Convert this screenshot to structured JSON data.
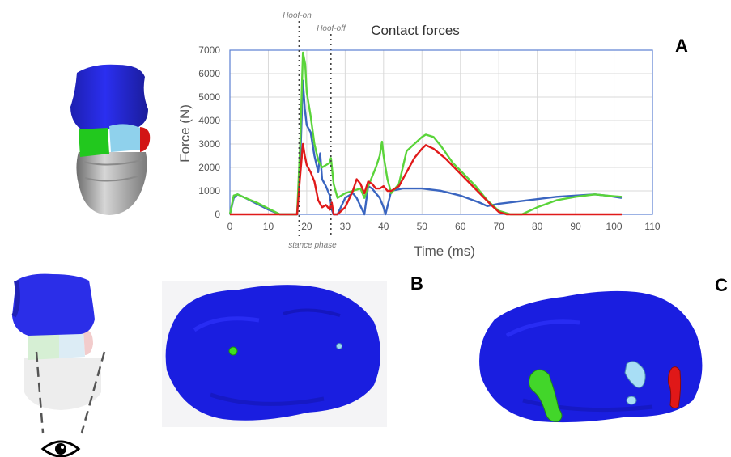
{
  "panels": {
    "a": "A",
    "b": "B",
    "c": "C"
  },
  "chart_data": {
    "type": "line",
    "title": "Contact forces",
    "xlabel": "Time (ms)",
    "ylabel": "Force (N)",
    "xlim": [
      0,
      110
    ],
    "ylim": [
      0,
      7000
    ],
    "xticks": [
      0,
      10,
      20,
      30,
      40,
      50,
      60,
      70,
      80,
      90,
      100,
      110
    ],
    "yticks": [
      0,
      1000,
      2000,
      3000,
      4000,
      5000,
      6000,
      7000
    ],
    "grid": true,
    "annotations": {
      "hoof_on": "Hoof-on",
      "hoof_off": "Hoof-off",
      "stance": "stance phase"
    },
    "markers": {
      "hoof_on_x": 18,
      "hoof_off_x": 26.3
    },
    "series": [
      {
        "color": "#3a65c0",
        "points": [
          [
            0,
            0
          ],
          [
            1,
            700
          ],
          [
            2,
            850
          ],
          [
            4,
            700
          ],
          [
            7,
            450
          ],
          [
            10,
            200
          ],
          [
            13,
            0
          ],
          [
            16,
            0
          ],
          [
            17.5,
            0
          ],
          [
            18.3,
            2200
          ],
          [
            19,
            5700
          ],
          [
            19.5,
            4500
          ],
          [
            20,
            3800
          ],
          [
            21,
            3500
          ],
          [
            22,
            2500
          ],
          [
            23,
            1800
          ],
          [
            23.5,
            2600
          ],
          [
            24,
            1500
          ],
          [
            25,
            1200
          ],
          [
            26,
            800
          ],
          [
            26.5,
            200
          ],
          [
            27,
            0
          ],
          [
            28,
            0
          ],
          [
            30,
            700
          ],
          [
            32,
            900
          ],
          [
            33,
            700
          ],
          [
            34,
            350
          ],
          [
            35,
            0
          ],
          [
            36,
            1200
          ],
          [
            37,
            1100
          ],
          [
            38,
            900
          ],
          [
            39,
            700
          ],
          [
            40,
            300
          ],
          [
            40.5,
            0
          ],
          [
            42,
            1000
          ],
          [
            45,
            1100
          ],
          [
            50,
            1100
          ],
          [
            55,
            1000
          ],
          [
            60,
            800
          ],
          [
            65,
            500
          ],
          [
            67,
            350
          ],
          [
            70,
            450
          ],
          [
            75,
            550
          ],
          [
            80,
            650
          ],
          [
            85,
            750
          ],
          [
            90,
            800
          ],
          [
            95,
            850
          ],
          [
            98,
            800
          ],
          [
            102,
            700
          ]
        ]
      },
      {
        "color": "#5ad43a",
        "points": [
          [
            0,
            0
          ],
          [
            1,
            800
          ],
          [
            2,
            850
          ],
          [
            4,
            700
          ],
          [
            7,
            500
          ],
          [
            10,
            250
          ],
          [
            13,
            0
          ],
          [
            16,
            0
          ],
          [
            17.5,
            0
          ],
          [
            18.3,
            3000
          ],
          [
            19,
            6900
          ],
          [
            19.6,
            6400
          ],
          [
            20,
            5200
          ],
          [
            21,
            4200
          ],
          [
            22,
            3000
          ],
          [
            23,
            2300
          ],
          [
            24,
            2000
          ],
          [
            25,
            2100
          ],
          [
            26,
            2200
          ],
          [
            26.3,
            2400
          ],
          [
            27,
            1300
          ],
          [
            28,
            700
          ],
          [
            30,
            900
          ],
          [
            32,
            1000
          ],
          [
            34,
            1100
          ],
          [
            35,
            700
          ],
          [
            36,
            1200
          ],
          [
            37,
            1600
          ],
          [
            38,
            2000
          ],
          [
            39,
            2500
          ],
          [
            39.6,
            3100
          ],
          [
            40,
            2500
          ],
          [
            41,
            1500
          ],
          [
            42,
            900
          ],
          [
            44,
            1300
          ],
          [
            46,
            2700
          ],
          [
            48,
            3000
          ],
          [
            50,
            3300
          ],
          [
            51,
            3400
          ],
          [
            53,
            3300
          ],
          [
            55,
            2900
          ],
          [
            58,
            2200
          ],
          [
            61,
            1700
          ],
          [
            64,
            1200
          ],
          [
            67,
            600
          ],
          [
            70,
            150
          ],
          [
            73,
            0
          ],
          [
            76,
            0
          ],
          [
            80,
            300
          ],
          [
            85,
            600
          ],
          [
            90,
            750
          ],
          [
            95,
            850
          ],
          [
            98,
            800
          ],
          [
            102,
            750
          ]
        ]
      },
      {
        "color": "#e01a1a",
        "points": [
          [
            0,
            0
          ],
          [
            5,
            0
          ],
          [
            10,
            0
          ],
          [
            17.5,
            0
          ],
          [
            18.2,
            1500
          ],
          [
            19,
            3000
          ],
          [
            19.5,
            2500
          ],
          [
            20,
            2100
          ],
          [
            21,
            1800
          ],
          [
            22,
            1400
          ],
          [
            23,
            600
          ],
          [
            24,
            300
          ],
          [
            25,
            400
          ],
          [
            26,
            200
          ],
          [
            26.5,
            500
          ],
          [
            27,
            0
          ],
          [
            28,
            0
          ],
          [
            30,
            300
          ],
          [
            32,
            1000
          ],
          [
            33,
            1500
          ],
          [
            34,
            1300
          ],
          [
            35,
            900
          ],
          [
            36,
            1400
          ],
          [
            37,
            1300
          ],
          [
            38,
            1100
          ],
          [
            39,
            1100
          ],
          [
            40,
            1200
          ],
          [
            41,
            1000
          ],
          [
            42,
            1000
          ],
          [
            44,
            1200
          ],
          [
            46,
            1800
          ],
          [
            48,
            2400
          ],
          [
            50,
            2800
          ],
          [
            51,
            2950
          ],
          [
            53,
            2800
          ],
          [
            56,
            2400
          ],
          [
            59,
            1900
          ],
          [
            62,
            1400
          ],
          [
            65,
            900
          ],
          [
            68,
            400
          ],
          [
            70,
            100
          ],
          [
            72,
            0
          ],
          [
            80,
            0
          ],
          [
            90,
            0
          ],
          [
            102,
            0
          ]
        ]
      }
    ]
  }
}
